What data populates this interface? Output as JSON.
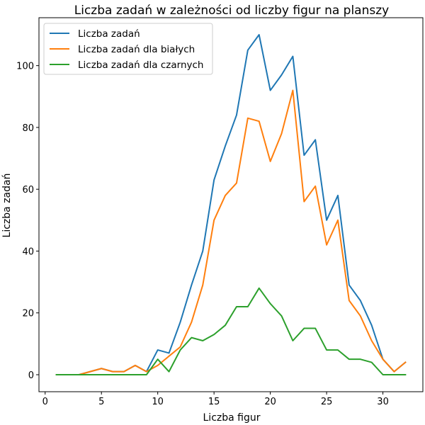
{
  "chart_data": {
    "type": "line",
    "title": "Liczba zadań w zależności od liczby figur na planszy",
    "xlabel": "Liczba figur",
    "ylabel": "Liczba zadań",
    "xlim": [
      -0.55,
      33.55
    ],
    "ylim": [
      -5.5,
      115.5
    ],
    "xticks": [
      0,
      5,
      10,
      15,
      20,
      25,
      30
    ],
    "yticks": [
      0,
      20,
      40,
      60,
      80,
      100
    ],
    "grid": false,
    "legend_position": "top-left",
    "x": [
      1,
      2,
      3,
      4,
      5,
      6,
      7,
      8,
      9,
      10,
      11,
      12,
      13,
      14,
      15,
      16,
      17,
      18,
      19,
      20,
      21,
      22,
      23,
      24,
      25,
      26,
      27,
      28,
      29,
      30,
      31,
      32
    ],
    "series": [
      {
        "name": "Liczba zadań",
        "color": "#1f77b4",
        "values": [
          0,
          0,
          0,
          1,
          2,
          1,
          1,
          3,
          1,
          8,
          7,
          17,
          29,
          40,
          63,
          74,
          84,
          105,
          110,
          92,
          97,
          103,
          71,
          76,
          50,
          58,
          29,
          24,
          16,
          5,
          1,
          4
        ]
      },
      {
        "name": "Liczba zadań dla białych",
        "color": "#ff7f0e",
        "values": [
          0,
          0,
          0,
          1,
          2,
          1,
          1,
          3,
          1,
          3,
          6,
          9,
          17,
          29,
          50,
          58,
          62,
          83,
          82,
          69,
          78,
          92,
          56,
          61,
          42,
          50,
          24,
          19,
          11,
          5,
          1,
          4
        ]
      },
      {
        "name": "Liczba zadań dla czarnych",
        "color": "#2ca02c",
        "values": [
          0,
          0,
          0,
          0,
          0,
          0,
          0,
          0,
          0,
          5,
          1,
          8,
          12,
          11,
          13,
          16,
          22,
          22,
          28,
          23,
          19,
          11,
          15,
          15,
          8,
          8,
          5,
          5,
          4,
          0,
          0,
          0
        ]
      }
    ]
  }
}
